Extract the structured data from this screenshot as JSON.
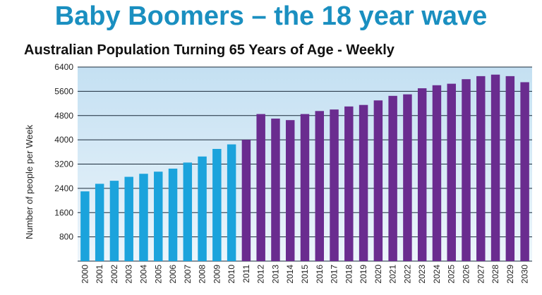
{
  "headline": "Baby Boomers – the 18 year wave",
  "chart_data": {
    "type": "bar",
    "title": "Australian Population Turning 65 Years of Age - Weekly",
    "xlabel": "",
    "ylabel": "Number of people per Week",
    "ylim": [
      0,
      6400
    ],
    "yticks": [
      800,
      1600,
      2400,
      3200,
      4000,
      4800,
      5600,
      6400
    ],
    "grid": true,
    "categories": [
      "2000",
      "2001",
      "2002",
      "2003",
      "2004",
      "2005",
      "2006",
      "2007",
      "2008",
      "2009",
      "2010",
      "2011",
      "2012",
      "2013",
      "2014",
      "2015",
      "2016",
      "2017",
      "2018",
      "2019",
      "2020",
      "2021",
      "2022",
      "2023",
      "2024",
      "2025",
      "2026",
      "2027",
      "2028",
      "2029",
      "2030"
    ],
    "values": [
      2300,
      2550,
      2650,
      2780,
      2880,
      2950,
      3050,
      3250,
      3450,
      3700,
      3850,
      4000,
      4850,
      4700,
      4650,
      4850,
      4950,
      5000,
      5100,
      5150,
      5300,
      5450,
      5500,
      5700,
      5800,
      5850,
      6000,
      6100,
      6150,
      6100,
      5900
    ],
    "colors": {
      "historical": "#1ba3dc",
      "projected": "#6a2c8f",
      "background_top": "#c4e0f2",
      "background_bottom": "#ecf5fb",
      "grid": "#1a2a3a",
      "headline": "#1a8fc0"
    }
  }
}
